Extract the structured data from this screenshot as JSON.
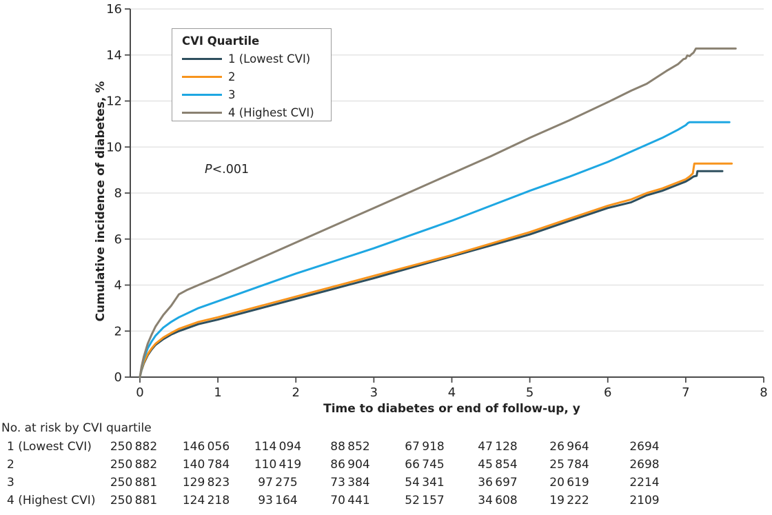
{
  "figure": {
    "background": "#ffffff",
    "text_color": "#232323"
  },
  "chart_data": {
    "type": "line",
    "subtype": "cumulative-incidence-kaplan-meier",
    "title": "",
    "xlabel": "Time to diabetes or end of follow-up, y",
    "ylabel": "Cumulative incidence of diabetes, %",
    "xlim": [
      0,
      8
    ],
    "ylim": [
      0,
      16
    ],
    "xticks": [
      "0",
      "1",
      "2",
      "3",
      "4",
      "5",
      "6",
      "7",
      "8"
    ],
    "yticks": [
      "0",
      "2",
      "4",
      "6",
      "8",
      "10",
      "12",
      "14",
      "16"
    ],
    "grid": "horizontal gridlines at every y tick",
    "legend": {
      "title": "CVI Quartile",
      "position": "upper-left",
      "border": "#9a9a9a"
    },
    "annotation": {
      "p_label": "P",
      "p_value": "<.001"
    },
    "colors": {
      "grid": "#e4e4e4",
      "axis": "#4b4b4b",
      "text": "#232323"
    },
    "series": [
      {
        "name": "1 (Lowest CVI)",
        "color": "#2e4f5e",
        "points": [
          [
            0,
            0
          ],
          [
            0.02,
            0.3
          ],
          [
            0.05,
            0.6
          ],
          [
            0.1,
            0.95
          ],
          [
            0.15,
            1.2
          ],
          [
            0.2,
            1.4
          ],
          [
            0.3,
            1.65
          ],
          [
            0.4,
            1.85
          ],
          [
            0.5,
            2.0
          ],
          [
            0.75,
            2.3
          ],
          [
            1,
            2.5
          ],
          [
            1.5,
            2.95
          ],
          [
            2,
            3.4
          ],
          [
            2.5,
            3.85
          ],
          [
            3,
            4.3
          ],
          [
            3.5,
            4.78
          ],
          [
            4,
            5.25
          ],
          [
            4.5,
            5.72
          ],
          [
            5,
            6.2
          ],
          [
            5.5,
            6.78
          ],
          [
            6,
            7.35
          ],
          [
            6.3,
            7.6
          ],
          [
            6.5,
            7.9
          ],
          [
            6.7,
            8.1
          ],
          [
            6.85,
            8.3
          ],
          [
            7,
            8.5
          ],
          [
            7.05,
            8.6
          ],
          [
            7.1,
            8.72
          ],
          [
            7.14,
            8.75
          ],
          [
            7.15,
            8.95
          ],
          [
            7.47,
            8.95
          ]
        ]
      },
      {
        "name": "2",
        "color": "#f7941d",
        "points": [
          [
            0,
            0
          ],
          [
            0.02,
            0.35
          ],
          [
            0.05,
            0.65
          ],
          [
            0.1,
            1.0
          ],
          [
            0.15,
            1.25
          ],
          [
            0.2,
            1.45
          ],
          [
            0.3,
            1.72
          ],
          [
            0.4,
            1.92
          ],
          [
            0.5,
            2.1
          ],
          [
            0.75,
            2.4
          ],
          [
            1,
            2.6
          ],
          [
            1.5,
            3.05
          ],
          [
            2,
            3.5
          ],
          [
            2.5,
            3.95
          ],
          [
            3,
            4.4
          ],
          [
            3.5,
            4.85
          ],
          [
            4,
            5.3
          ],
          [
            4.5,
            5.8
          ],
          [
            5,
            6.3
          ],
          [
            5.5,
            6.88
          ],
          [
            6,
            7.45
          ],
          [
            6.3,
            7.72
          ],
          [
            6.5,
            8.0
          ],
          [
            6.7,
            8.2
          ],
          [
            6.85,
            8.4
          ],
          [
            7,
            8.6
          ],
          [
            7.05,
            8.72
          ],
          [
            7.09,
            8.85
          ],
          [
            7.11,
            9.28
          ],
          [
            7.59,
            9.28
          ]
        ]
      },
      {
        "name": "3",
        "color": "#1ea7e2",
        "points": [
          [
            0,
            0
          ],
          [
            0.02,
            0.4
          ],
          [
            0.05,
            0.8
          ],
          [
            0.1,
            1.25
          ],
          [
            0.15,
            1.55
          ],
          [
            0.2,
            1.8
          ],
          [
            0.3,
            2.15
          ],
          [
            0.4,
            2.4
          ],
          [
            0.5,
            2.6
          ],
          [
            0.75,
            3.0
          ],
          [
            1,
            3.3
          ],
          [
            1.5,
            3.9
          ],
          [
            2,
            4.5
          ],
          [
            2.5,
            5.05
          ],
          [
            3,
            5.6
          ],
          [
            3.5,
            6.2
          ],
          [
            4,
            6.8
          ],
          [
            4.5,
            7.45
          ],
          [
            5,
            8.1
          ],
          [
            5.5,
            8.7
          ],
          [
            6,
            9.35
          ],
          [
            6.3,
            9.8
          ],
          [
            6.5,
            10.1
          ],
          [
            6.7,
            10.4
          ],
          [
            6.9,
            10.75
          ],
          [
            7,
            10.95
          ],
          [
            7.03,
            11.05
          ],
          [
            7.05,
            11.08
          ],
          [
            7.56,
            11.08
          ]
        ]
      },
      {
        "name": "4 (Highest CVI)",
        "color": "#8a8171",
        "points": [
          [
            0,
            0
          ],
          [
            0.02,
            0.45
          ],
          [
            0.05,
            0.9
          ],
          [
            0.1,
            1.45
          ],
          [
            0.15,
            1.85
          ],
          [
            0.2,
            2.2
          ],
          [
            0.25,
            2.45
          ],
          [
            0.3,
            2.7
          ],
          [
            0.4,
            3.1
          ],
          [
            0.5,
            3.6
          ],
          [
            0.6,
            3.78
          ],
          [
            0.75,
            4.0
          ],
          [
            1,
            4.35
          ],
          [
            1.5,
            5.1
          ],
          [
            2,
            5.85
          ],
          [
            2.5,
            6.6
          ],
          [
            3,
            7.35
          ],
          [
            3.5,
            8.1
          ],
          [
            4,
            8.85
          ],
          [
            4.5,
            9.6
          ],
          [
            5,
            10.4
          ],
          [
            5.5,
            11.15
          ],
          [
            6,
            11.95
          ],
          [
            6.3,
            12.45
          ],
          [
            6.5,
            12.75
          ],
          [
            6.75,
            13.3
          ],
          [
            6.9,
            13.6
          ],
          [
            6.97,
            13.82
          ],
          [
            7.0,
            13.85
          ],
          [
            7.02,
            13.98
          ],
          [
            7.05,
            13.95
          ],
          [
            7.08,
            14.05
          ],
          [
            7.1,
            14.1
          ],
          [
            7.13,
            14.28
          ],
          [
            7.64,
            14.28
          ]
        ]
      }
    ]
  },
  "risk_table": {
    "title": "No. at risk by CVI quartile",
    "rows": [
      {
        "label": "1 (Lowest CVI)",
        "values": [
          "250 882",
          "146 056",
          "114 094",
          "88 852",
          "67 918",
          "47 128",
          "26 964",
          "2694"
        ]
      },
      {
        "label": "2",
        "values": [
          "250 882",
          "140 784",
          "110 419",
          "86 904",
          "66 745",
          "45 854",
          "25 784",
          "2698"
        ]
      },
      {
        "label": "3",
        "values": [
          "250 881",
          "129 823",
          "97 275",
          "73 384",
          "54 341",
          "36 697",
          "20 619",
          "2214"
        ]
      },
      {
        "label": "4 (Highest CVI)",
        "values": [
          "250 881",
          "124 218",
          "93 164",
          "70 441",
          "52 157",
          "34 608",
          "19 222",
          "2109"
        ]
      }
    ]
  }
}
